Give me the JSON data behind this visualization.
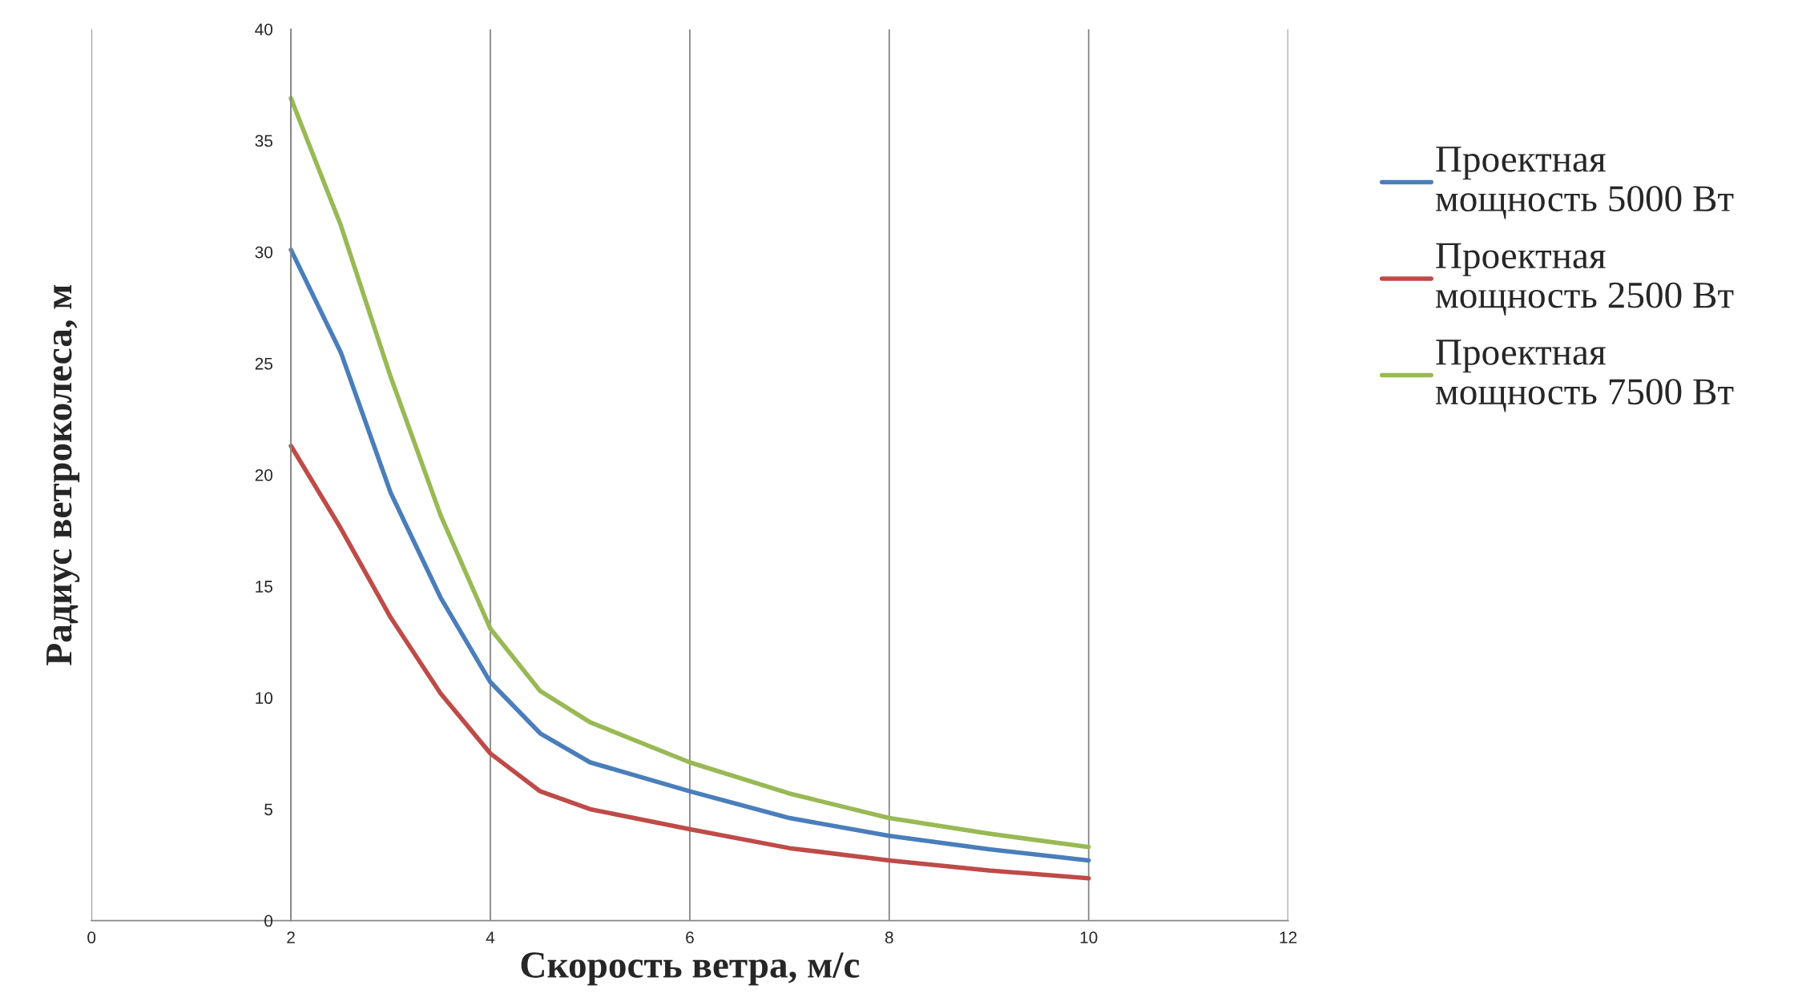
{
  "chart_data": {
    "type": "line",
    "xlabel": "Скорость ветра, м/с",
    "ylabel": "Радиус ветроколеса, м",
    "x": [
      2,
      2.5,
      3,
      3.5,
      4,
      4.5,
      5,
      6,
      7,
      8,
      9,
      10
    ],
    "series": [
      {
        "name": "Проектная мощность 5000 Вт",
        "color": "#4a7ebb",
        "values": [
          30.1,
          25.5,
          19.2,
          14.5,
          10.7,
          8.4,
          7.1,
          5.8,
          4.6,
          3.8,
          3.2,
          2.7
        ]
      },
      {
        "name": "Проектная мощность 2500 Вт",
        "color": "#be4b48",
        "values": [
          21.3,
          17.6,
          13.6,
          10.2,
          7.5,
          5.8,
          5.0,
          4.1,
          3.25,
          2.7,
          2.25,
          1.9
        ]
      },
      {
        "name": "Проектная мощность 7500 Вт",
        "color": "#98b954",
        "values": [
          36.9,
          31.2,
          24.4,
          18.2,
          13.1,
          10.3,
          8.9,
          7.1,
          5.7,
          4.6,
          3.9,
          3.3
        ]
      }
    ],
    "xlim": [
      0,
      12
    ],
    "xticks": [
      0,
      2,
      4,
      6,
      8,
      10,
      12
    ],
    "ylim": [
      0,
      40
    ],
    "yticks": [
      0,
      5,
      10,
      15,
      20,
      25,
      30,
      35,
      40
    ],
    "grid": "x",
    "legend": "right",
    "marker": "none",
    "line_style": "solid"
  }
}
